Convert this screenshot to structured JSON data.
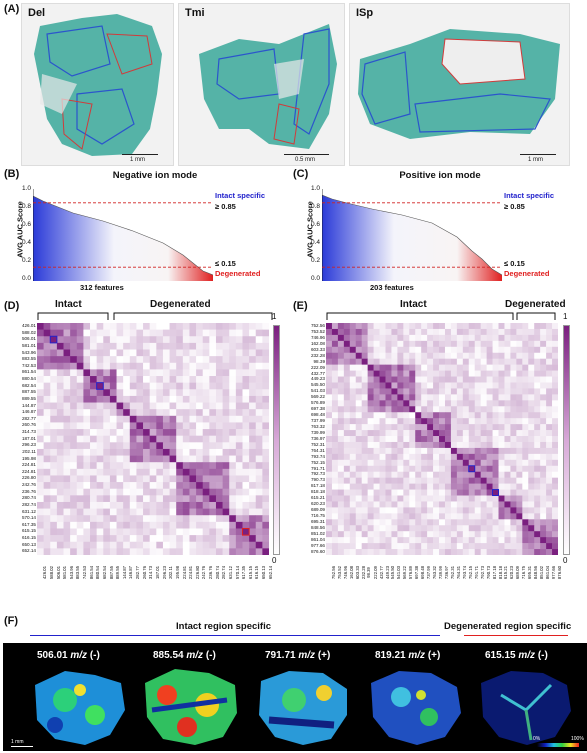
{
  "panelA": {
    "label": "(A)",
    "tissues": [
      {
        "name": "Del",
        "scale": "1 mm"
      },
      {
        "name": "Tmi",
        "scale": "0.5 mm"
      },
      {
        "name": "ISp",
        "scale": "1 mm"
      }
    ]
  },
  "panelB": {
    "label": "(B)",
    "title": "Negative ion mode",
    "ylabel": "AVG AUC Score",
    "yticks": [
      "1.0",
      "0.8",
      "0.6",
      "0.4",
      "0.2",
      "0.0"
    ],
    "upper_label": "Intact specific",
    "upper_thresh": "≥ 0.85",
    "lower_label": "Degenerated",
    "lower_thresh": "≤ 0.15",
    "features": "312 features"
  },
  "panelC": {
    "label": "(C)",
    "title": "Positive ion mode",
    "ylabel": "AVG AUC Score",
    "yticks": [
      "1.0",
      "0.8",
      "0.6",
      "0.4",
      "0.2",
      "0.0"
    ],
    "upper_label": "Intact specific",
    "upper_thresh": "≥ 0.85",
    "lower_label": "Degenerated",
    "lower_thresh": "≤ 0.15",
    "features": "203 features"
  },
  "panelD": {
    "label": "(D)",
    "left_group": "Intact",
    "right_group": "Degenerated",
    "cbar_max": "1",
    "cbar_min": "0",
    "row_labels": [
      "426.01",
      "588.02",
      "506.01",
      "581.01",
      "543.96",
      "883.55",
      "742.53",
      "861.54",
      "880.54",
      "682.54",
      "887.55",
      "889.55",
      "144.87",
      "146.87",
      "282.77",
      "260.76",
      "314.73",
      "187.01",
      "296.23",
      "202.11",
      "195.98",
      "224.81",
      "224.81",
      "226.80",
      "242.76",
      "236.76",
      "280.74",
      "282.74",
      "631.12",
      "570.14",
      "617.35",
      "615.15",
      "616.15",
      "650.13",
      "652.14"
    ]
  },
  "panelE": {
    "label": "(E)",
    "left_group": "Intact",
    "right_group": "Degenerated",
    "cbar_max": "1",
    "cbar_min": "0",
    "row_labels": [
      "752.56",
      "753.52",
      "746.96",
      "162.08",
      "603.33",
      "232.28",
      "98.39",
      "222.09",
      "432.77",
      "449.23",
      "545.50",
      "541.03",
      "569.22",
      "576.89",
      "697.38",
      "698.48",
      "737.99",
      "763.32",
      "739.99",
      "736.97",
      "752.31",
      "764.31",
      "793.74",
      "752.15",
      "791.71",
      "792.73",
      "790.73",
      "817.18",
      "818.18",
      "615.21",
      "620.23",
      "689.09",
      "716.75",
      "695.31",
      "848.56",
      "851.02",
      "861.04",
      "977.66",
      "876.60"
    ]
  },
  "panelF": {
    "label": "(F)",
    "intact_header": "Intact region specific",
    "degen_header": "Degenerated region specific",
    "images": [
      {
        "mz": "506.01",
        "unit": "m/z",
        "mode": "(-)"
      },
      {
        "mz": "885.54",
        "unit": "m/z",
        "mode": "(-)"
      },
      {
        "mz": "791.71",
        "unit": "m/z",
        "mode": "(+)"
      },
      {
        "mz": "819.21",
        "unit": "m/z",
        "mode": "(+)"
      },
      {
        "mz": "615.15",
        "unit": "m/z",
        "mode": "(-)"
      }
    ],
    "scale": "1 mm",
    "cbar_min": "0%",
    "cbar_max": "100%"
  },
  "colors": {
    "intact": "#2222cc",
    "degenerated": "#e02020",
    "heat_max": "#7a1f7f",
    "tissue": "#3aa89a"
  }
}
